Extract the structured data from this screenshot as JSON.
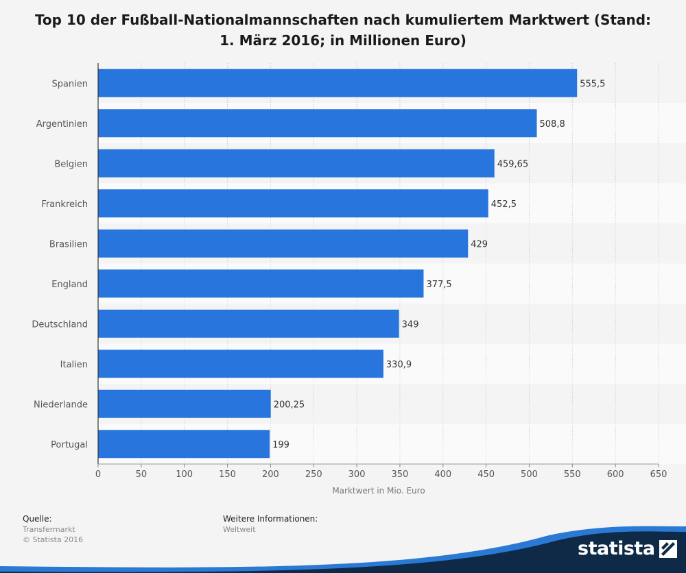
{
  "chart_data": {
    "type": "bar",
    "orientation": "horizontal",
    "title": "Top 10 der Fußball-Nationalmannschaften nach kumuliertem Marktwert (Stand: 1. März 2016; in Millionen Euro)",
    "title_lines": [
      "Top 10 der Fußball-Nationalmannschaften nach kumuliertem Marktwert (Stand:",
      "1. März 2016; in Millionen Euro)"
    ],
    "xlabel": "Marktwert in Mio. Euro",
    "ylabel": "",
    "categories": [
      "Spanien",
      "Argentinien",
      "Belgien",
      "Frankreich",
      "Brasilien",
      "England",
      "Deutschland",
      "Italien",
      "Niederlande",
      "Portugal"
    ],
    "values": [
      555.5,
      508.8,
      459.65,
      452.5,
      429,
      377.5,
      349,
      330.9,
      200.25,
      199
    ],
    "value_labels": [
      "555,5",
      "508,8",
      "459,65",
      "452,5",
      "429",
      "377,5",
      "349",
      "330,9",
      "200,25",
      "199"
    ],
    "xlim": [
      0,
      650
    ],
    "xticks": [
      0,
      50,
      100,
      150,
      200,
      250,
      300,
      350,
      400,
      450,
      500,
      550,
      600,
      650
    ],
    "grid": "vertical dotted",
    "legend": "none",
    "bar_color": "#2876dd"
  },
  "footer": {
    "source_heading": "Quelle:",
    "source_lines": [
      "Transfermarkt",
      "© Statista 2016"
    ],
    "info_heading": "Weitere Informationen:",
    "info_lines": [
      "Weltweit"
    ]
  },
  "brand": {
    "name": "statista",
    "colors": {
      "dark": "#0e2a47",
      "accent": "#2a79d4"
    }
  }
}
